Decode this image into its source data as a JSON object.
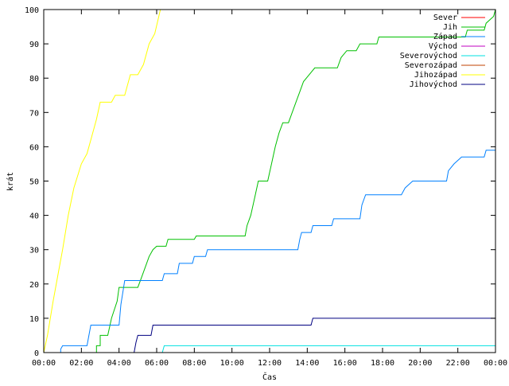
{
  "chart_data": {
    "type": "line",
    "title": "",
    "xlabel": "Čas",
    "ylabel": "krát",
    "x_unit": "hours",
    "xlim": [
      0,
      24
    ],
    "ylim": [
      0,
      100
    ],
    "x_ticks": [
      {
        "value": 0,
        "label": "00:00"
      },
      {
        "value": 2,
        "label": "02:00"
      },
      {
        "value": 4,
        "label": "04:00"
      },
      {
        "value": 6,
        "label": "06:00"
      },
      {
        "value": 8,
        "label": "08:00"
      },
      {
        "value": 10,
        "label": "10:00"
      },
      {
        "value": 12,
        "label": "12:00"
      },
      {
        "value": 14,
        "label": "14:00"
      },
      {
        "value": 16,
        "label": "16:00"
      },
      {
        "value": 18,
        "label": "18:00"
      },
      {
        "value": 20,
        "label": "20:00"
      },
      {
        "value": 22,
        "label": "22:00"
      },
      {
        "value": 24,
        "label": "00:00"
      }
    ],
    "y_ticks": [
      0,
      10,
      20,
      30,
      40,
      50,
      60,
      70,
      80,
      90,
      100
    ],
    "grid": false,
    "legend_position": "top-right",
    "series": [
      {
        "name": "Sever",
        "color": "#ff0000",
        "points": []
      },
      {
        "name": "Jih",
        "color": "#00c000",
        "points": [
          [
            0.0,
            0
          ],
          [
            2.8,
            0
          ],
          [
            2.8,
            2
          ],
          [
            3.0,
            2
          ],
          [
            3.0,
            5
          ],
          [
            3.4,
            5
          ],
          [
            3.6,
            10
          ],
          [
            3.9,
            15
          ],
          [
            4.0,
            19
          ],
          [
            5.0,
            19
          ],
          [
            5.2,
            22
          ],
          [
            5.4,
            25
          ],
          [
            5.6,
            28
          ],
          [
            5.8,
            30
          ],
          [
            6.0,
            31
          ],
          [
            6.5,
            31
          ],
          [
            6.6,
            33
          ],
          [
            8.0,
            33
          ],
          [
            8.1,
            34
          ],
          [
            10.7,
            34
          ],
          [
            10.8,
            37
          ],
          [
            11.0,
            40
          ],
          [
            11.2,
            45
          ],
          [
            11.4,
            50
          ],
          [
            11.9,
            50
          ],
          [
            12.1,
            55
          ],
          [
            12.3,
            60
          ],
          [
            12.5,
            64
          ],
          [
            12.7,
            67
          ],
          [
            13.0,
            67
          ],
          [
            13.2,
            70
          ],
          [
            13.4,
            73
          ],
          [
            13.6,
            76
          ],
          [
            13.8,
            79
          ],
          [
            14.1,
            81
          ],
          [
            14.4,
            83
          ],
          [
            15.6,
            83
          ],
          [
            15.8,
            86
          ],
          [
            16.1,
            88
          ],
          [
            16.6,
            88
          ],
          [
            16.8,
            90
          ],
          [
            17.7,
            90
          ],
          [
            17.8,
            92
          ],
          [
            22.4,
            92
          ],
          [
            22.5,
            94
          ],
          [
            23.4,
            94
          ],
          [
            23.5,
            96
          ],
          [
            23.9,
            98
          ],
          [
            24.0,
            100
          ]
        ]
      },
      {
        "name": "Západ",
        "color": "#0080ff",
        "points": [
          [
            0.0,
            0
          ],
          [
            0.9,
            0
          ],
          [
            0.9,
            1
          ],
          [
            1.0,
            2
          ],
          [
            2.3,
            2
          ],
          [
            2.4,
            5
          ],
          [
            2.5,
            8
          ],
          [
            4.0,
            8
          ],
          [
            4.1,
            14
          ],
          [
            4.3,
            21
          ],
          [
            6.3,
            21
          ],
          [
            6.4,
            23
          ],
          [
            7.1,
            23
          ],
          [
            7.2,
            26
          ],
          [
            7.9,
            26
          ],
          [
            8.0,
            28
          ],
          [
            8.6,
            28
          ],
          [
            8.7,
            30
          ],
          [
            13.5,
            30
          ],
          [
            13.6,
            33
          ],
          [
            13.7,
            35
          ],
          [
            14.2,
            35
          ],
          [
            14.3,
            37
          ],
          [
            15.3,
            37
          ],
          [
            15.4,
            39
          ],
          [
            16.8,
            39
          ],
          [
            16.9,
            43
          ],
          [
            17.1,
            46
          ],
          [
            19.0,
            46
          ],
          [
            19.2,
            48
          ],
          [
            19.6,
            50
          ],
          [
            21.4,
            50
          ],
          [
            21.5,
            53
          ],
          [
            21.8,
            55
          ],
          [
            22.2,
            57
          ],
          [
            23.4,
            57
          ],
          [
            23.5,
            59
          ],
          [
            24.0,
            59
          ]
        ]
      },
      {
        "name": "Východ",
        "color": "#c000c0",
        "points": []
      },
      {
        "name": "Severovýchod",
        "color": "#00e0e0",
        "points": [
          [
            0.0,
            0
          ],
          [
            6.3,
            0
          ],
          [
            6.4,
            2
          ],
          [
            24.0,
            2
          ]
        ]
      },
      {
        "name": "Severozápad",
        "color": "#c04000",
        "points": []
      },
      {
        "name": "Jihozápad",
        "color": "#ffff00",
        "points": [
          [
            0.0,
            0
          ],
          [
            0.2,
            5
          ],
          [
            0.5,
            15
          ],
          [
            0.8,
            24
          ],
          [
            1.0,
            30
          ],
          [
            1.3,
            40
          ],
          [
            1.6,
            48
          ],
          [
            2.0,
            55
          ],
          [
            2.3,
            58
          ],
          [
            2.5,
            62
          ],
          [
            2.8,
            68
          ],
          [
            3.0,
            73
          ],
          [
            3.6,
            73
          ],
          [
            3.8,
            75
          ],
          [
            4.3,
            75
          ],
          [
            4.6,
            81
          ],
          [
            5.0,
            81
          ],
          [
            5.3,
            84
          ],
          [
            5.6,
            90
          ],
          [
            5.9,
            93
          ],
          [
            6.2,
            100
          ]
        ]
      },
      {
        "name": "Jihovýchod",
        "color": "#000080",
        "points": [
          [
            0.0,
            0
          ],
          [
            4.8,
            0
          ],
          [
            4.9,
            3
          ],
          [
            5.0,
            5
          ],
          [
            5.7,
            5
          ],
          [
            5.8,
            8
          ],
          [
            14.2,
            8
          ],
          [
            14.3,
            10
          ],
          [
            24.0,
            10
          ]
        ]
      }
    ]
  }
}
